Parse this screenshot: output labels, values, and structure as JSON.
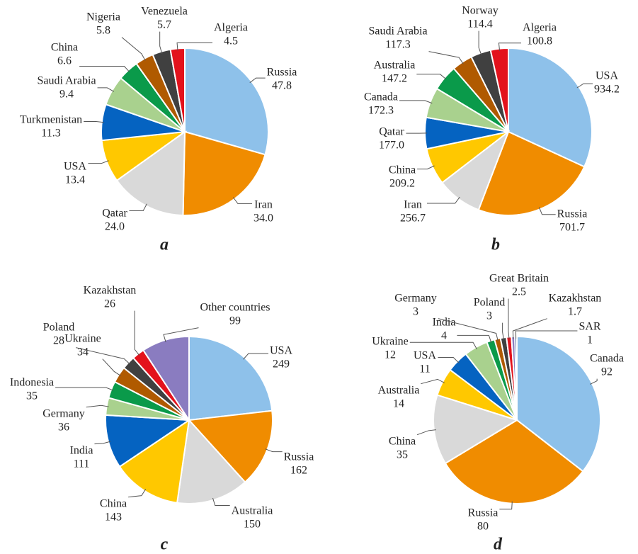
{
  "chart_data": [
    {
      "type": "pie",
      "title": "a",
      "categories": [
        "Russia",
        "Iran",
        "Qatar",
        "USA",
        "Turkmenistan",
        "Saudi Arabia",
        "China",
        "Nigeria",
        "Venezuela",
        "Algeria"
      ],
      "values": [
        47.8,
        34.0,
        24.0,
        13.4,
        11.3,
        9.4,
        6.6,
        5.8,
        5.7,
        4.5
      ],
      "value_labels": [
        "47.8",
        "34.0",
        "24.0",
        "13.4",
        "11.3",
        "9.4",
        "6.6",
        "5.8",
        "5.7",
        "4.5"
      ],
      "colors": [
        "#8ec1ea",
        "#f08c00",
        "#d9d9d9",
        "#ffc800",
        "#0563c1",
        "#a9d18e",
        "#0a9a4a",
        "#b05a00",
        "#404040",
        "#e3121c"
      ]
    },
    {
      "type": "pie",
      "title": "b",
      "categories": [
        "USA",
        "Russia",
        "Iran",
        "China",
        "Qatar",
        "Canada",
        "Australia",
        "Saudi Arabia",
        "Norway",
        "Algeria"
      ],
      "values": [
        934.2,
        701.7,
        256.7,
        209.2,
        177.0,
        172.3,
        147.2,
        117.3,
        114.4,
        100.8
      ],
      "value_labels": [
        "934.2",
        "701.7",
        "256.7",
        "209.2",
        "177.0",
        "172.3",
        "147.2",
        "117.3",
        "114.4",
        "100.8"
      ],
      "colors": [
        "#8ec1ea",
        "#f08c00",
        "#d9d9d9",
        "#ffc800",
        "#0563c1",
        "#a9d18e",
        "#0a9a4a",
        "#b05a00",
        "#404040",
        "#e3121c"
      ]
    },
    {
      "type": "pie",
      "title": "c",
      "categories": [
        "USA",
        "Russia",
        "Australia",
        "China",
        "India",
        "Germany",
        "Indonesia",
        "Ukraine",
        "Poland",
        "Kazakhstan",
        "Other countries"
      ],
      "values": [
        249,
        162,
        150,
        143,
        111,
        36,
        35,
        34,
        28,
        26,
        99
      ],
      "colors": [
        "#8ec1ea",
        "#f08c00",
        "#d9d9d9",
        "#ffc800",
        "#0563c1",
        "#a9d18e",
        "#0a9a4a",
        "#b05a00",
        "#404040",
        "#e3121c",
        "#8a7cc0"
      ]
    },
    {
      "type": "pie",
      "title": "d",
      "categories": [
        "Canada",
        "Russia",
        "China",
        "Australia",
        "USA",
        "Ukraine",
        "India",
        "Germany",
        "Poland",
        "Great Britain",
        "Kazakhstan",
        "SAR"
      ],
      "values": [
        92,
        80,
        35,
        14,
        11,
        12,
        4,
        3,
        3,
        2.5,
        1.7,
        1
      ],
      "colors": [
        "#8ec1ea",
        "#f08c00",
        "#d9d9d9",
        "#ffc800",
        "#0563c1",
        "#a9d18e",
        "#0a9a4a",
        "#b05a00",
        "#404040",
        "#e3121c",
        "#8a7cc0",
        "#1f3c88"
      ]
    }
  ]
}
